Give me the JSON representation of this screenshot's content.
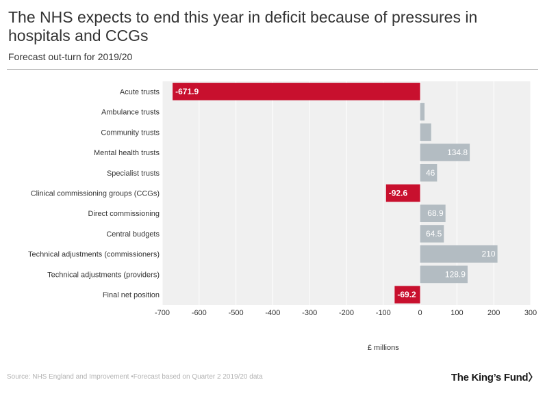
{
  "header": {
    "title": "The NHS expects to end this year in deficit because of pressures in hospitals and CCGs",
    "subtitle": "Forecast out-turn for 2019/20"
  },
  "footer": {
    "source": "Source: NHS England and Improvement",
    "note": "Forecast based on Quarter 2 2019/20 data",
    "logo": "The King’s Fund〉"
  },
  "colors": {
    "negative": "#c8102e",
    "positive": "#b3bcc2",
    "plot_background": "#f0f0f0",
    "label_on_bar": "#ffffff",
    "axis_text": "#333333"
  },
  "chart_data": {
    "type": "bar",
    "orientation": "horizontal",
    "categories": [
      "Acute trusts",
      "Ambulance trusts",
      "Community trusts",
      "Mental health trusts",
      "Specialist trusts",
      "Clinical commissioning groups (CCGs)",
      "Direct commissioning",
      "Central budgets",
      "Technical adjustments (commissioners)",
      "Technical adjustments (providers)",
      "Final net position"
    ],
    "values": [
      -671.9,
      12,
      30,
      134.8,
      46,
      -92.6,
      68.9,
      64.5,
      210,
      128.9,
      -69.2
    ],
    "data_labels": [
      "-671.9",
      "",
      "",
      "134.8",
      "46",
      "-92.6",
      "68.9",
      "64.5",
      "210",
      "128.9",
      "-69.2"
    ],
    "xlabel": "£ millions",
    "ylabel": "",
    "xlim": [
      -700,
      300
    ],
    "xticks": [
      -700,
      -600,
      -500,
      -400,
      -300,
      -200,
      -100,
      0,
      100,
      200,
      300
    ],
    "xtick_labels": [
      "-700",
      "-600",
      "-500",
      "-400",
      "-300",
      "-200",
      "-100",
      "0",
      "100",
      "200",
      "300"
    ],
    "grid": true,
    "legend": "none"
  }
}
